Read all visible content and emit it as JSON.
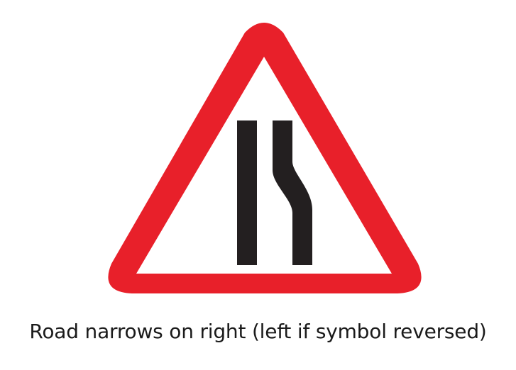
{
  "sign": {
    "icon": "road-narrows-on-right-sign-icon",
    "border_color": "#e8202a",
    "fill_color": "#ffffff",
    "symbol_color": "#231f20"
  },
  "caption": {
    "text": "Road narrows on right (left if symbol reversed)"
  }
}
